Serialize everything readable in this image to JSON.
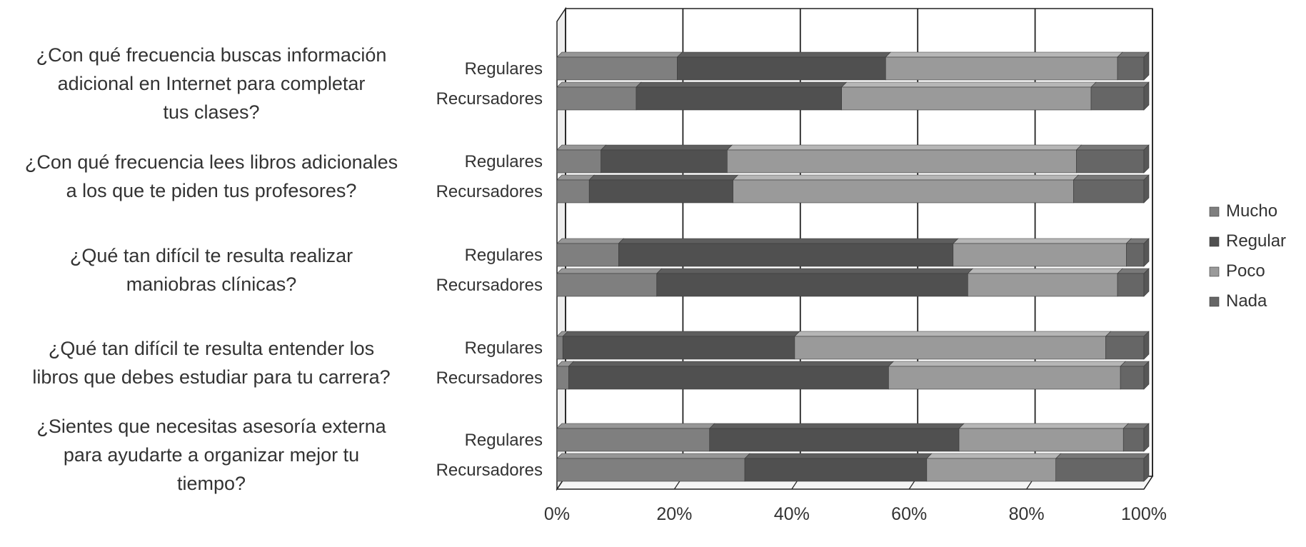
{
  "chart_data": {
    "type": "bar",
    "orientation": "horizontal",
    "stacked": "percent",
    "title": "",
    "xlabel": "",
    "ylabel": "",
    "xlim": [
      0,
      100
    ],
    "x_ticks": [
      "0%",
      "20%",
      "40%",
      "60%",
      "80%",
      "100%"
    ],
    "grid": "vertical",
    "legend_position": "right",
    "group_labels": [
      "Regulares",
      "Recursadores"
    ],
    "questions": [
      {
        "lines": [
          "¿Con qué frecuencia buscas información",
          "adicional en Internet para completar",
          "tus clases?"
        ]
      },
      {
        "lines": [
          "¿Con qué frecuencia lees libros adicionales",
          "a los que te piden tus profesores?"
        ]
      },
      {
        "lines": [
          "¿Qué tan difícil te resulta realizar",
          "maniobras clínicas?"
        ]
      },
      {
        "lines": [
          "¿Qué tan difícil te resulta entender los",
          "libros que debes estudiar para tu carrera?"
        ]
      },
      {
        "lines": [
          "¿Sientes que necesitas asesoría externa",
          "para ayudarte a organizar mejor tu",
          "tiempo?"
        ]
      }
    ],
    "series": [
      {
        "name": "Mucho",
        "color": "#7f7f7f"
      },
      {
        "name": "Regular",
        "color": "#505050"
      },
      {
        "name": "Poco",
        "color": "#9a9a9a"
      },
      {
        "name": "Nada",
        "color": "#666666"
      }
    ],
    "values": [
      [
        [
          20.5,
          35.5,
          39.5,
          4.5
        ],
        [
          13.5,
          35.0,
          42.5,
          9.0
        ]
      ],
      [
        [
          7.5,
          21.5,
          59.5,
          11.5
        ],
        [
          5.5,
          24.5,
          58.0,
          12.0
        ]
      ],
      [
        [
          10.5,
          57.0,
          29.5,
          3.0
        ],
        [
          17.0,
          53.0,
          25.5,
          4.5
        ]
      ],
      [
        [
          1.0,
          39.5,
          53.0,
          6.5
        ],
        [
          2.0,
          54.5,
          39.5,
          4.0
        ]
      ],
      [
        [
          26.0,
          42.5,
          28.0,
          3.5
        ],
        [
          32.0,
          31.0,
          22.0,
          15.0
        ]
      ]
    ]
  }
}
